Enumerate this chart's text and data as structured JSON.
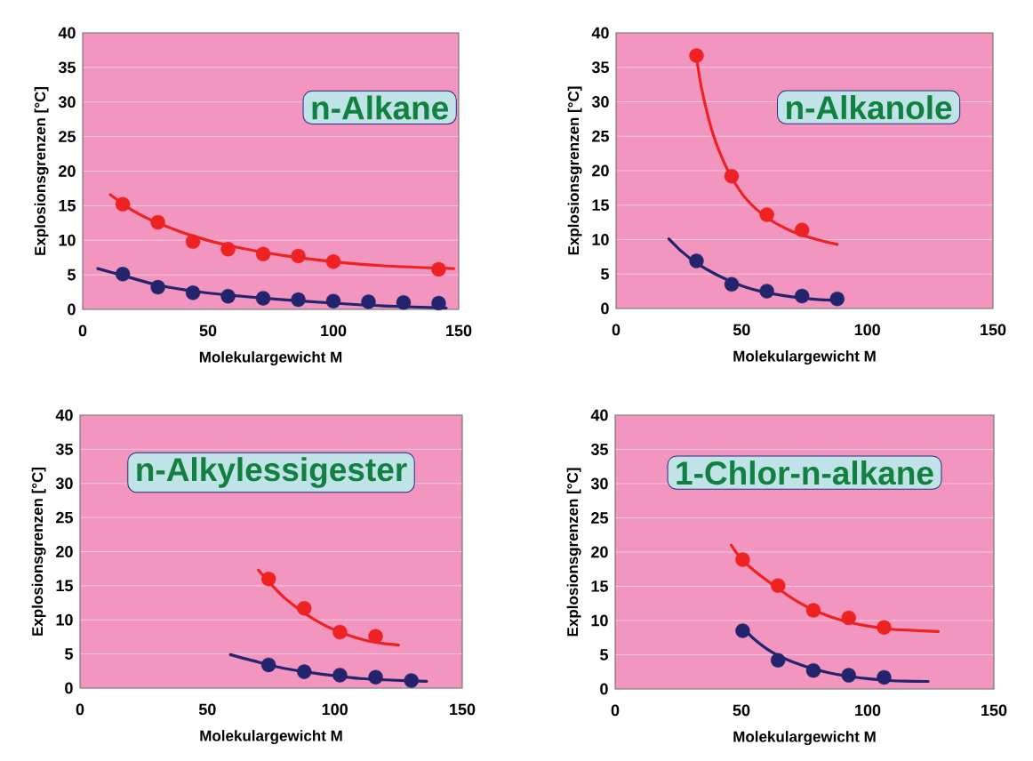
{
  "chart_data": [
    {
      "type": "scatter",
      "title": "n-Alkane",
      "xlabel": "Molekulargewicht M",
      "ylabel": "Explosionsgrenzen [°C]",
      "xlim": [
        0,
        150
      ],
      "ylim": [
        0,
        40
      ],
      "xticks": [
        0,
        50,
        100,
        150
      ],
      "yticks": [
        0,
        5,
        10,
        15,
        20,
        25,
        30,
        35,
        40
      ],
      "grid": "y",
      "series": [
        {
          "type": "scatter",
          "marker": "circle",
          "color": "#ee2222",
          "x": [
            16,
            30,
            44,
            58,
            72,
            86,
            100,
            142
          ],
          "values": [
            15.2,
            12.6,
            9.8,
            8.7,
            8.0,
            7.7,
            6.9,
            5.8
          ]
        },
        {
          "type": "scatter",
          "marker": "circle",
          "color": "#24246e",
          "x": [
            16,
            30,
            44,
            58,
            72,
            86,
            100,
            114,
            128,
            142
          ],
          "values": [
            5.1,
            3.2,
            2.4,
            1.9,
            1.6,
            1.4,
            1.2,
            1.1,
            1.0,
            0.9
          ]
        },
        {
          "type": "line",
          "marker": "none",
          "color": "#ee2222",
          "x": [
            11,
            20,
            30,
            45,
            60,
            80,
            100,
            120,
            148
          ],
          "values": [
            16.6,
            14.3,
            12.5,
            10.5,
            9.1,
            7.8,
            6.9,
            6.3,
            5.9
          ]
        },
        {
          "type": "line",
          "marker": "none",
          "color": "#24246e",
          "x": [
            6,
            16,
            30,
            45,
            60,
            80,
            100,
            120,
            145
          ],
          "values": [
            5.9,
            4.9,
            3.5,
            2.6,
            2.0,
            1.4,
            0.9,
            0.5,
            0.2
          ]
        }
      ]
    },
    {
      "type": "scatter",
      "title": "n-Alkanole",
      "xlabel": "Molekulargewicht M",
      "ylabel": "Explosionsgrenzen [°C]",
      "xlim": [
        0,
        150
      ],
      "ylim": [
        0,
        40
      ],
      "xticks": [
        0,
        50,
        100,
        150
      ],
      "yticks": [
        0,
        5,
        10,
        15,
        20,
        25,
        30,
        35,
        40
      ],
      "grid": "y",
      "series": [
        {
          "type": "scatter",
          "marker": "circle",
          "color": "#ee2222",
          "x": [
            32,
            46,
            60,
            74
          ],
          "values": [
            36.7,
            19.2,
            13.6,
            11.4
          ]
        },
        {
          "type": "scatter",
          "marker": "circle",
          "color": "#24246e",
          "x": [
            32,
            46,
            60,
            74,
            88
          ],
          "values": [
            6.9,
            3.5,
            2.5,
            1.8,
            1.4
          ]
        },
        {
          "type": "line",
          "marker": "none",
          "color": "#ee2222",
          "x": [
            32,
            34,
            38,
            42,
            46,
            52,
            60,
            70,
            80,
            88
          ],
          "values": [
            36.5,
            32,
            26,
            22,
            19,
            15.8,
            13.2,
            11.2,
            10.0,
            9.3
          ]
        },
        {
          "type": "line",
          "marker": "none",
          "color": "#24246e",
          "x": [
            21,
            26,
            32,
            40,
            50,
            60,
            70,
            80,
            88
          ],
          "values": [
            10.1,
            8.3,
            6.6,
            4.9,
            3.3,
            2.3,
            1.7,
            1.3,
            1.2
          ]
        }
      ]
    },
    {
      "type": "scatter",
      "title": "n-Alkylessigester",
      "xlabel": "Molekulargewicht M",
      "ylabel": "Explosionsgrenzen [°C]",
      "xlim": [
        0,
        150
      ],
      "ylim": [
        0,
        40
      ],
      "xticks": [
        0,
        50,
        100,
        150
      ],
      "yticks": [
        0,
        5,
        10,
        15,
        20,
        25,
        30,
        35,
        40
      ],
      "grid": "y",
      "series": [
        {
          "type": "scatter",
          "marker": "circle",
          "color": "#ee2222",
          "x": [
            74,
            88,
            102,
            116
          ],
          "values": [
            16.0,
            11.7,
            8.2,
            7.6
          ]
        },
        {
          "type": "scatter",
          "marker": "circle",
          "color": "#24246e",
          "x": [
            74,
            88,
            102,
            116,
            130
          ],
          "values": [
            3.4,
            2.4,
            1.9,
            1.6,
            1.1
          ]
        },
        {
          "type": "line",
          "marker": "none",
          "color": "#ee2222",
          "x": [
            70,
            74,
            80,
            88,
            96,
            104,
            112,
            118,
            125
          ],
          "values": [
            17.3,
            15.6,
            13.3,
            11.0,
            9.2,
            7.9,
            7.0,
            6.6,
            6.3
          ]
        },
        {
          "type": "line",
          "marker": "none",
          "color": "#24246e",
          "x": [
            59,
            70,
            80,
            90,
            100,
            110,
            120,
            136
          ],
          "values": [
            4.9,
            3.8,
            2.9,
            2.3,
            1.8,
            1.4,
            1.2,
            1.0
          ]
        }
      ]
    },
    {
      "type": "scatter",
      "title": "1-Chlor-n-alkane",
      "xlabel": "Molekulargewicht M",
      "ylabel": "Explosionsgrenzen [°C]",
      "xlim": [
        0,
        150
      ],
      "ylim": [
        0,
        40
      ],
      "xticks": [
        0,
        50,
        100,
        150
      ],
      "yticks": [
        0,
        5,
        10,
        15,
        20,
        25,
        30,
        35,
        40
      ],
      "grid": "y",
      "series": [
        {
          "type": "scatter",
          "marker": "circle",
          "color": "#ee2222",
          "x": [
            50.5,
            64.5,
            78.5,
            92.5,
            106.5
          ],
          "values": [
            18.9,
            15.1,
            11.5,
            10.4,
            9.0
          ]
        },
        {
          "type": "scatter",
          "marker": "circle",
          "color": "#24246e",
          "x": [
            50.5,
            64.5,
            78.5,
            92.5,
            106.5
          ],
          "values": [
            8.5,
            4.2,
            2.7,
            2.0,
            1.7
          ]
        },
        {
          "type": "line",
          "marker": "none",
          "color": "#ee2222",
          "x": [
            46,
            50,
            56,
            64,
            72,
            80,
            90,
            100,
            110,
            128
          ],
          "values": [
            21,
            19,
            17,
            14.8,
            12.8,
            11.3,
            10.0,
            9.2,
            8.7,
            8.4
          ]
        },
        {
          "type": "line",
          "marker": "none",
          "color": "#24246e",
          "x": [
            50,
            55,
            62,
            70,
            80,
            90,
            100,
            110,
            124
          ],
          "values": [
            9.2,
            7.3,
            5.4,
            4.0,
            2.8,
            2.0,
            1.5,
            1.2,
            1.1
          ]
        }
      ]
    }
  ]
}
